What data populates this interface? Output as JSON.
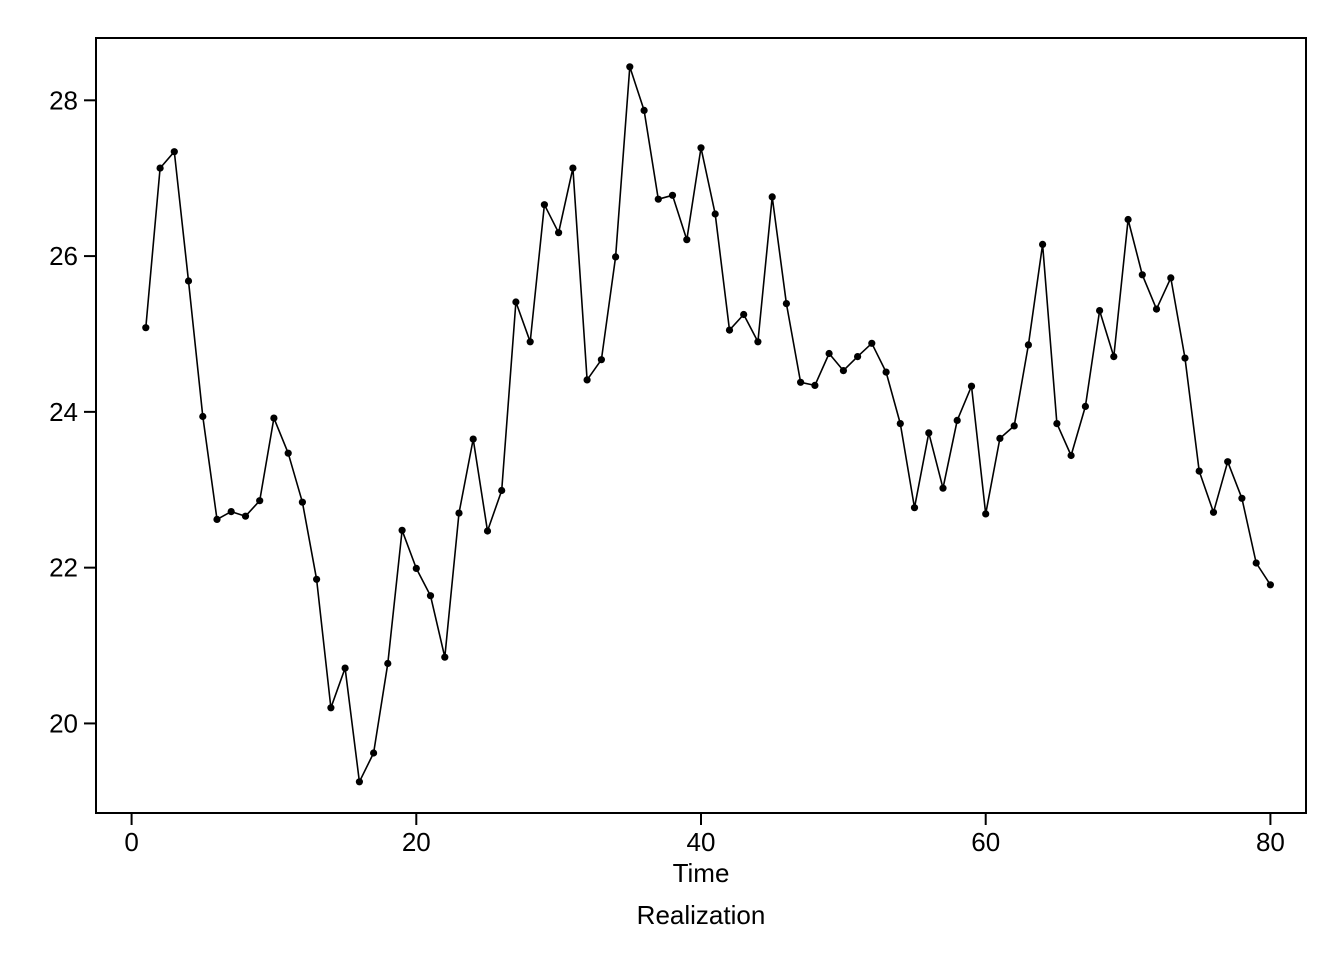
{
  "chart_data": {
    "type": "line",
    "xlabel": "Time",
    "caption": "Realization",
    "ylabel": "",
    "xlim": [
      -2.5,
      82.5
    ],
    "ylim": [
      18.85,
      28.8
    ],
    "x_ticks": [
      0,
      20,
      40,
      60,
      80
    ],
    "y_ticks": [
      20,
      22,
      24,
      26,
      28
    ],
    "marker": "filled-circle",
    "grid": false,
    "series": [
      {
        "values": [
          [
            1,
            25.08
          ],
          [
            2,
            27.13
          ],
          [
            3,
            27.34
          ],
          [
            4,
            25.68
          ],
          [
            5,
            23.94
          ],
          [
            6,
            22.62
          ],
          [
            7,
            22.72
          ],
          [
            8,
            22.66
          ],
          [
            9,
            22.86
          ],
          [
            10,
            23.92
          ],
          [
            11,
            23.47
          ],
          [
            12,
            22.84
          ],
          [
            13,
            21.85
          ],
          [
            14,
            20.2
          ],
          [
            15,
            20.71
          ],
          [
            16,
            19.25
          ],
          [
            17,
            19.62
          ],
          [
            18,
            20.77
          ],
          [
            19,
            22.48
          ],
          [
            20,
            21.99
          ],
          [
            21,
            21.64
          ],
          [
            22,
            20.85
          ],
          [
            23,
            22.7
          ],
          [
            24,
            23.65
          ],
          [
            25,
            22.47
          ],
          [
            26,
            22.99
          ],
          [
            27,
            25.41
          ],
          [
            28,
            24.9
          ],
          [
            29,
            26.66
          ],
          [
            30,
            26.3
          ],
          [
            31,
            27.13
          ],
          [
            32,
            24.41
          ],
          [
            33,
            24.67
          ],
          [
            34,
            25.99
          ],
          [
            35,
            28.43
          ],
          [
            36,
            27.87
          ],
          [
            37,
            26.73
          ],
          [
            38,
            26.78
          ],
          [
            39,
            26.21
          ],
          [
            40,
            27.39
          ],
          [
            41,
            26.54
          ],
          [
            42,
            25.05
          ],
          [
            43,
            25.25
          ],
          [
            44,
            24.9
          ],
          [
            45,
            26.76
          ],
          [
            46,
            25.39
          ],
          [
            47,
            24.38
          ],
          [
            48,
            24.34
          ],
          [
            49,
            24.75
          ],
          [
            50,
            24.53
          ],
          [
            51,
            24.71
          ],
          [
            52,
            24.88
          ],
          [
            53,
            24.51
          ],
          [
            54,
            23.85
          ],
          [
            55,
            22.77
          ],
          [
            56,
            23.73
          ],
          [
            57,
            23.02
          ],
          [
            58,
            23.89
          ],
          [
            59,
            24.33
          ],
          [
            60,
            22.69
          ],
          [
            61,
            23.66
          ],
          [
            62,
            23.82
          ],
          [
            63,
            24.86
          ],
          [
            64,
            26.15
          ],
          [
            65,
            23.85
          ],
          [
            66,
            23.44
          ],
          [
            67,
            24.07
          ],
          [
            68,
            25.3
          ],
          [
            69,
            24.71
          ],
          [
            70,
            26.47
          ],
          [
            71,
            25.76
          ],
          [
            72,
            25.32
          ],
          [
            73,
            25.72
          ],
          [
            74,
            24.69
          ],
          [
            75,
            23.24
          ],
          [
            76,
            22.71
          ],
          [
            77,
            23.36
          ],
          [
            78,
            22.89
          ],
          [
            79,
            22.06
          ],
          [
            80,
            21.78
          ]
        ],
        "color": "#000000"
      }
    ]
  }
}
